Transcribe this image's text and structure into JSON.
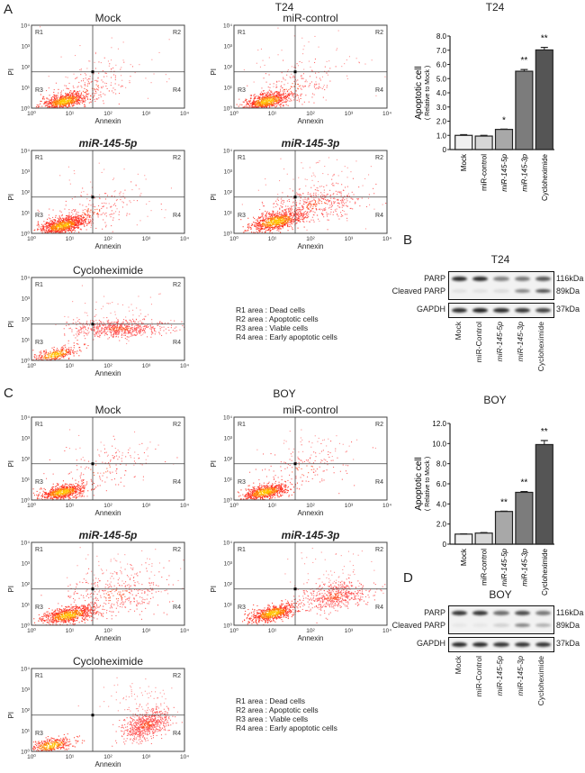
{
  "panels": {
    "A": "A",
    "B": "B",
    "C": "C",
    "D": "D"
  },
  "sections": {
    "t24": "T24",
    "boy": "BOY"
  },
  "flow_axis": {
    "x_label": "Annexin",
    "y_label": "PI",
    "ticks": [
      "10⁰",
      "10¹",
      "10²",
      "10³",
      "10⁴"
    ],
    "regions": [
      "R1",
      "R2",
      "R3",
      "R4"
    ]
  },
  "flow_plots_t24": [
    "Mock",
    "miR-control",
    "miR-145-5p",
    "miR-145-3p",
    "Cycloheximide"
  ],
  "flow_plots_boy": [
    "Mock",
    "miR-control",
    "miR-145-5p",
    "miR-145-3p",
    "Cycloheximide"
  ],
  "legend": [
    "R1 area : Dead cells",
    "R2 area : Apoptotic  cells",
    "R3 area : Viable cells",
    "R4 area : Early apoptotic  cells"
  ],
  "chart_data": [
    {
      "type": "bar",
      "title": "T24",
      "ylabel": "Apoptotic cell",
      "ylabel2": "( Relative to Mock )",
      "categories": [
        "Mock",
        "miR-control",
        "miR-145-5p",
        "miR-145-3p",
        "Cycloheximide"
      ],
      "values": [
        1.0,
        0.95,
        1.42,
        5.52,
        7.02
      ],
      "errors": [
        0.05,
        0.05,
        0.02,
        0.12,
        0.18
      ],
      "significance": [
        "",
        "",
        "*",
        "**",
        "**"
      ],
      "ylim": [
        0,
        8
      ],
      "yticks": [
        "0",
        "1.0",
        "2.0",
        "3.0",
        "4.0",
        "5.0",
        "6.0",
        "7.0",
        "8.0"
      ],
      "colors": [
        "#f0f0f0",
        "#d6d6d6",
        "#a8a8a8",
        "#7c7c7c",
        "#555555"
      ]
    },
    {
      "type": "bar",
      "title": "BOY",
      "ylabel": "Apoptotic cell",
      "ylabel2": "( Relative to Mock )",
      "categories": [
        "Mock",
        "miR-control",
        "miR-145-5p",
        "miR-145-3p",
        "Cycloheximide"
      ],
      "values": [
        1.0,
        1.1,
        3.25,
        5.15,
        9.9
      ],
      "errors": [
        0.02,
        0.05,
        0.03,
        0.08,
        0.4
      ],
      "significance": [
        "",
        "",
        "**",
        "**",
        "**"
      ],
      "ylim": [
        0,
        12
      ],
      "yticks": [
        "0",
        "2.0",
        "4.0",
        "6.0",
        "8.0",
        "10.0",
        "12.0"
      ],
      "colors": [
        "#f0f0f0",
        "#d6d6d6",
        "#a8a8a8",
        "#7c7c7c",
        "#555555"
      ]
    }
  ],
  "blots": [
    {
      "title": "T24",
      "rows": [
        "PARP",
        "Cleaved PARP",
        "GAPDH"
      ],
      "kda": [
        "116kDa",
        "89kDa",
        "37kDa"
      ],
      "lanes": [
        "Mock",
        "miR-Control",
        "miR-145-5p",
        "miR-145-3p",
        "Cycloheximide"
      ],
      "parp": [
        0.9,
        0.9,
        0.5,
        0.55,
        0.7
      ],
      "cleaved": [
        0.08,
        0.08,
        0.1,
        0.5,
        0.75
      ],
      "gapdh": [
        0.9,
        0.95,
        0.9,
        0.85,
        0.8
      ]
    },
    {
      "title": "BOY",
      "rows": [
        "PARP",
        "Cleaved PARP",
        "GAPDH"
      ],
      "kda": [
        "116kDa",
        "89kDa",
        "37kDa"
      ],
      "lanes": [
        "Mock",
        "miR-Control",
        "miR-145-5p",
        "miR-145-3p",
        "Cycloheximide"
      ],
      "parp": [
        0.85,
        0.85,
        0.6,
        0.75,
        0.55
      ],
      "cleaved": [
        0.05,
        0.05,
        0.15,
        0.5,
        0.3
      ],
      "gapdh": [
        0.9,
        0.9,
        0.85,
        0.85,
        0.85
      ]
    }
  ]
}
